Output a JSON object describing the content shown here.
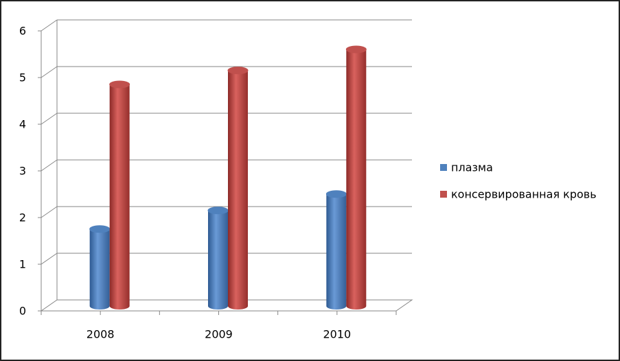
{
  "chart_data": {
    "type": "bar",
    "categories": [
      "2008",
      "2009",
      "2010"
    ],
    "series": [
      {
        "name": "плазма",
        "color": "#4f81bd",
        "values": [
          1.65,
          2.05,
          2.4
        ]
      },
      {
        "name": "консервированная кровь",
        "color": "#c0504d",
        "values": [
          4.75,
          5.05,
          5.5
        ]
      }
    ],
    "ylim": [
      0,
      6
    ],
    "yticks": [
      0,
      1,
      2,
      3,
      4,
      5,
      6
    ],
    "grid": true,
    "legend": "right"
  }
}
